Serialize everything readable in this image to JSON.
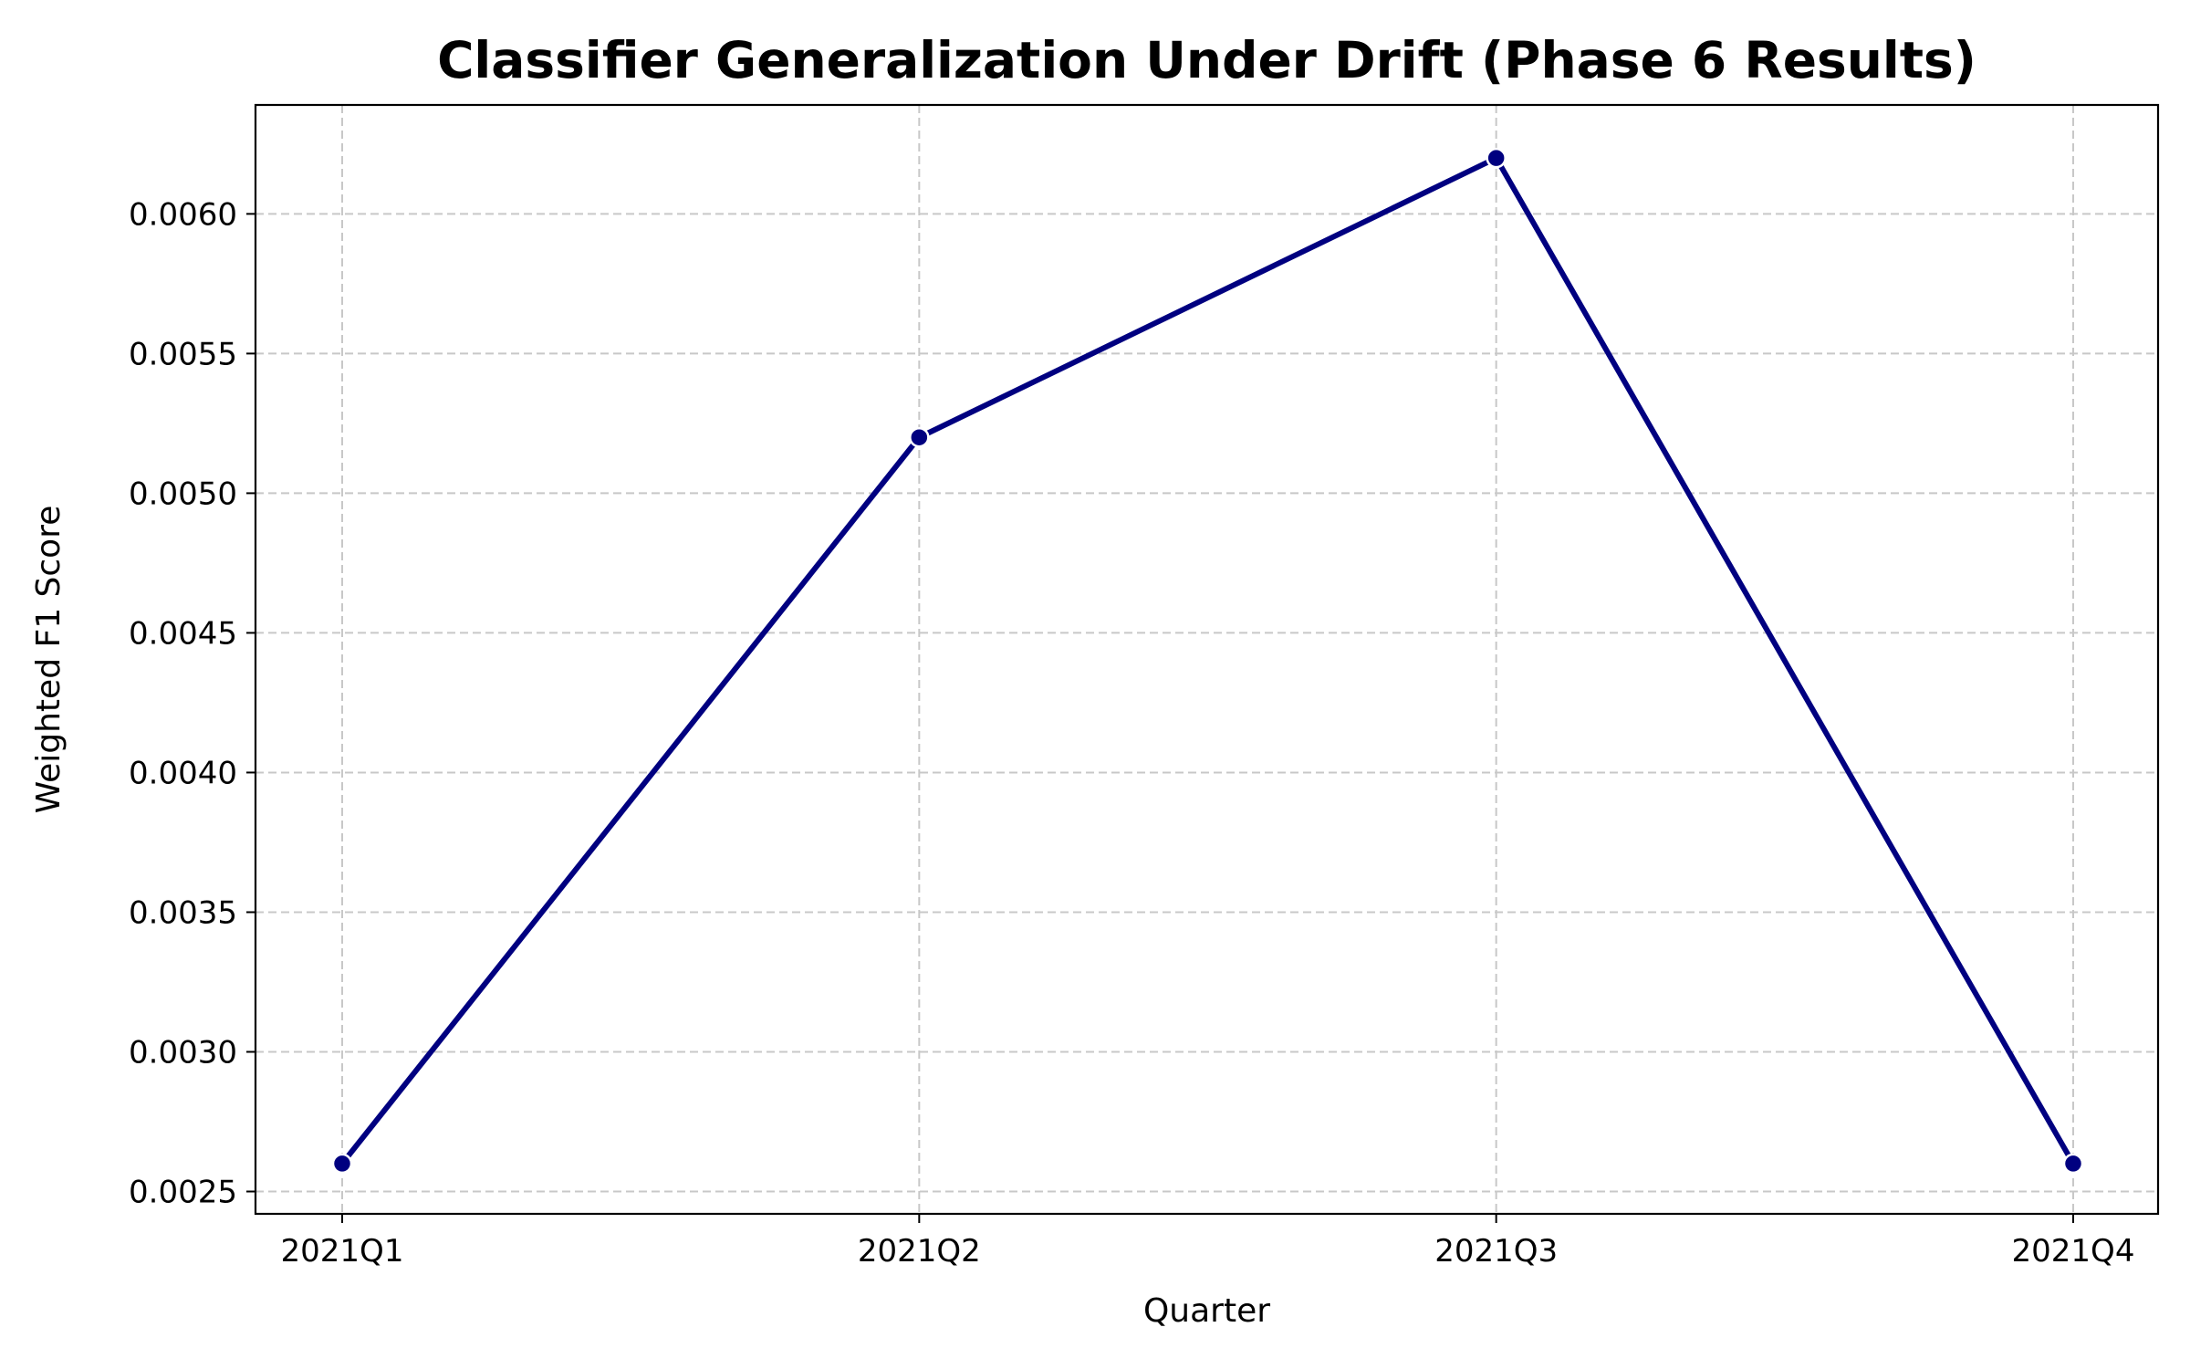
{
  "chart_data": {
    "type": "line",
    "title": "Classifier Generalization Under Drift (Phase 6 Results)",
    "xlabel": "Quarter",
    "ylabel": "Weighted F1 Score",
    "categories": [
      "2021Q1",
      "2021Q2",
      "2021Q3",
      "2021Q4"
    ],
    "series": [
      {
        "values": [
          0.0026,
          0.0052,
          0.0062,
          0.0026
        ],
        "color": "#000080",
        "marker": "circle"
      }
    ],
    "ylim": [
      0.00242,
      0.00639
    ],
    "yticks": [
      0.0025,
      0.003,
      0.0035,
      0.004,
      0.0045,
      0.005,
      0.0055,
      0.006
    ],
    "ytick_labels": [
      "0.0025",
      "0.0030",
      "0.0035",
      "0.0040",
      "0.0045",
      "0.0050",
      "0.0055",
      "0.0060"
    ],
    "grid": true,
    "grid_style": "dashed",
    "grid_color": "#c8c8c8",
    "legend": false
  }
}
